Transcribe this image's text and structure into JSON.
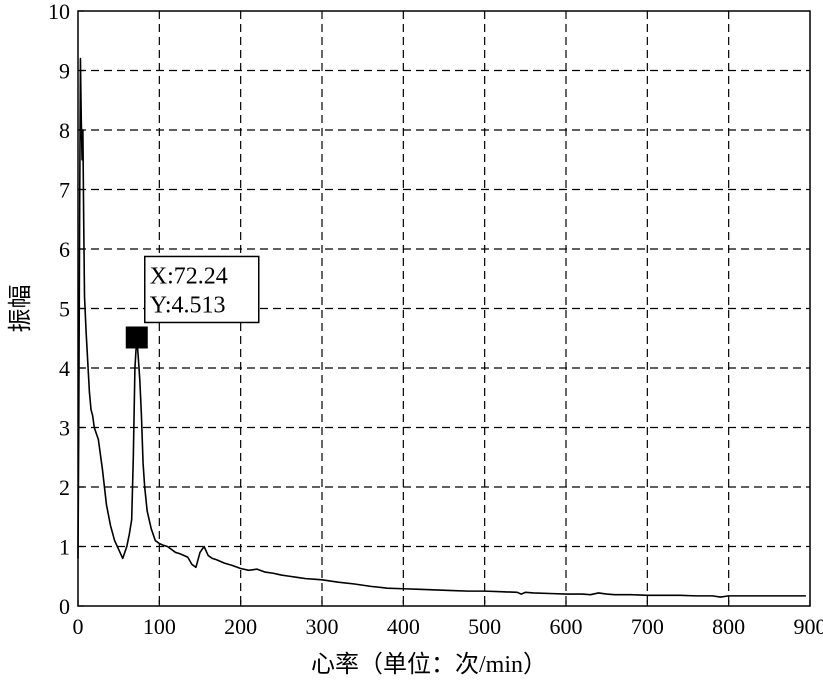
{
  "chart_data": {
    "type": "line",
    "title": "",
    "xlabel": "心率（单位：次/min）",
    "ylabel": "振幅",
    "xlim": [
      0,
      900
    ],
    "ylim": [
      0,
      10
    ],
    "grid": true,
    "grid_style": "dashed",
    "x_ticks": [
      "0",
      "100",
      "200",
      "300",
      "400",
      "500",
      "600",
      "700",
      "800",
      "900"
    ],
    "y_ticks": [
      "0",
      "1",
      "2",
      "3",
      "4",
      "5",
      "6",
      "7",
      "8",
      "9",
      "10"
    ],
    "series": [
      {
        "color": "#000000",
        "x": [
          0,
          1,
          2,
          3,
          4,
          5,
          6,
          7,
          8,
          10,
          12,
          14,
          16,
          18,
          20,
          25,
          30,
          35,
          40,
          45,
          50,
          55,
          60,
          63,
          66,
          68,
          70,
          72.24,
          74,
          76,
          78,
          80,
          82,
          85,
          90,
          95,
          100,
          105,
          110,
          115,
          120,
          125,
          130,
          135,
          140,
          145,
          150,
          155,
          160,
          165,
          170,
          180,
          190,
          200,
          210,
          220,
          230,
          240,
          250,
          260,
          270,
          280,
          290,
          300,
          320,
          340,
          360,
          380,
          400,
          420,
          440,
          460,
          480,
          500,
          520,
          540,
          545,
          550,
          560,
          580,
          600,
          620,
          630,
          640,
          650,
          660,
          680,
          700,
          720,
          740,
          760,
          780,
          790,
          800,
          820,
          840,
          860,
          880,
          895
        ],
        "y": [
          0.8,
          3.2,
          6.5,
          9.2,
          8.2,
          7.5,
          8.0,
          6.5,
          5.2,
          4.6,
          4.1,
          3.6,
          3.3,
          3.2,
          3.0,
          2.8,
          2.3,
          1.7,
          1.35,
          1.1,
          0.95,
          0.8,
          1.0,
          1.2,
          1.45,
          2.5,
          4.0,
          4.513,
          4.2,
          3.8,
          3.2,
          2.4,
          2.0,
          1.6,
          1.3,
          1.1,
          1.05,
          1.02,
          1.0,
          0.95,
          0.9,
          0.88,
          0.85,
          0.82,
          0.7,
          0.65,
          0.9,
          1.0,
          0.85,
          0.8,
          0.78,
          0.72,
          0.68,
          0.63,
          0.6,
          0.62,
          0.57,
          0.55,
          0.52,
          0.5,
          0.48,
          0.46,
          0.45,
          0.44,
          0.4,
          0.37,
          0.33,
          0.3,
          0.29,
          0.28,
          0.27,
          0.26,
          0.25,
          0.25,
          0.24,
          0.23,
          0.2,
          0.23,
          0.22,
          0.21,
          0.2,
          0.2,
          0.19,
          0.22,
          0.2,
          0.19,
          0.19,
          0.18,
          0.18,
          0.18,
          0.17,
          0.17,
          0.15,
          0.17,
          0.17,
          0.17,
          0.17,
          0.17,
          0.17
        ]
      }
    ],
    "datatip": {
      "x": 72.24,
      "y": 4.513,
      "x_text": "X:72.24",
      "y_text": "Y:4.513"
    }
  }
}
